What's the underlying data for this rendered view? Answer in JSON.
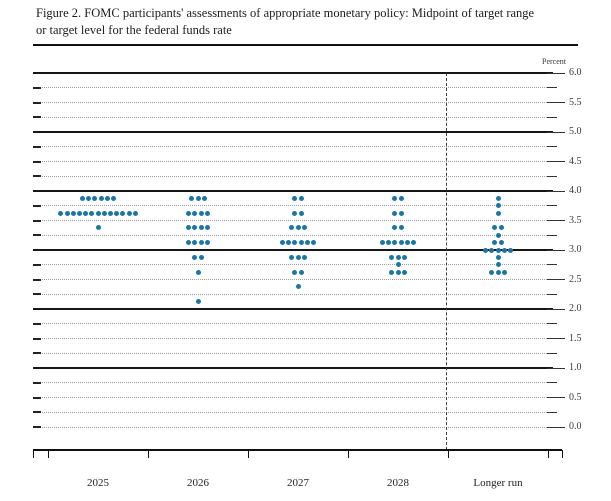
{
  "figure_title_line1": "Figure 2. FOMC participants' assessments of appropriate monetary policy: Midpoint of target range",
  "figure_title_line2": "or target level for the federal funds rate",
  "axis": {
    "unit_label": "Percent",
    "y_labels": [
      "6.0",
      "5.5",
      "5.0",
      "4.5",
      "4.0",
      "3.5",
      "3.0",
      "2.5",
      "2.0",
      "1.5",
      "1.0",
      "0.5",
      "0.0"
    ]
  },
  "colors": {
    "dot": "#1c76a1",
    "solid_line": "#161616",
    "dotted_line": "#9d9d9d",
    "dashed_separator": "#3a3a3a",
    "text": "#1c1c1c"
  },
  "chart_data": {
    "type": "scatter",
    "title": "FOMC participants' assessments of appropriate monetary policy: Midpoint of target range or target level for the federal funds rate",
    "ylabel": "Percent",
    "ylim": [
      0.0,
      6.0
    ],
    "grid_step": 0.25,
    "label_step": 0.5,
    "legend": "none",
    "categories": [
      "2025",
      "2026",
      "2027",
      "2028",
      "Longer run"
    ],
    "dot_counts": [
      {
        "category": "2025",
        "distribution": [
          {
            "rate": 3.875,
            "count": 6
          },
          {
            "rate": 3.625,
            "count": 13
          },
          {
            "rate": 3.375,
            "count": 1
          }
        ]
      },
      {
        "category": "2026",
        "distribution": [
          {
            "rate": 3.875,
            "count": 3
          },
          {
            "rate": 3.625,
            "count": 4
          },
          {
            "rate": 3.375,
            "count": 4
          },
          {
            "rate": 3.125,
            "count": 4
          },
          {
            "rate": 2.875,
            "count": 2
          },
          {
            "rate": 2.625,
            "count": 1
          },
          {
            "rate": 2.125,
            "count": 1
          }
        ]
      },
      {
        "category": "2027",
        "distribution": [
          {
            "rate": 3.875,
            "count": 2
          },
          {
            "rate": 3.625,
            "count": 2
          },
          {
            "rate": 3.375,
            "count": 3
          },
          {
            "rate": 3.125,
            "count": 6
          },
          {
            "rate": 2.875,
            "count": 3
          },
          {
            "rate": 2.625,
            "count": 2
          },
          {
            "rate": 2.375,
            "count": 1
          }
        ]
      },
      {
        "category": "2028",
        "distribution": [
          {
            "rate": 3.875,
            "count": 2
          },
          {
            "rate": 3.625,
            "count": 2
          },
          {
            "rate": 3.375,
            "count": 2
          },
          {
            "rate": 3.125,
            "count": 6
          },
          {
            "rate": 2.875,
            "count": 3
          },
          {
            "rate": 2.75,
            "count": 1
          },
          {
            "rate": 2.625,
            "count": 3
          }
        ]
      },
      {
        "category": "Longer run",
        "distribution": [
          {
            "rate": 3.875,
            "count": 1
          },
          {
            "rate": 3.75,
            "count": 1
          },
          {
            "rate": 3.625,
            "count": 1
          },
          {
            "rate": 3.375,
            "count": 2
          },
          {
            "rate": 3.25,
            "count": 1
          },
          {
            "rate": 3.125,
            "count": 2
          },
          {
            "rate": 3.0,
            "count": 5
          },
          {
            "rate": 2.875,
            "count": 1
          },
          {
            "rate": 2.75,
            "count": 1
          },
          {
            "rate": 2.625,
            "count": 3
          }
        ]
      }
    ]
  }
}
